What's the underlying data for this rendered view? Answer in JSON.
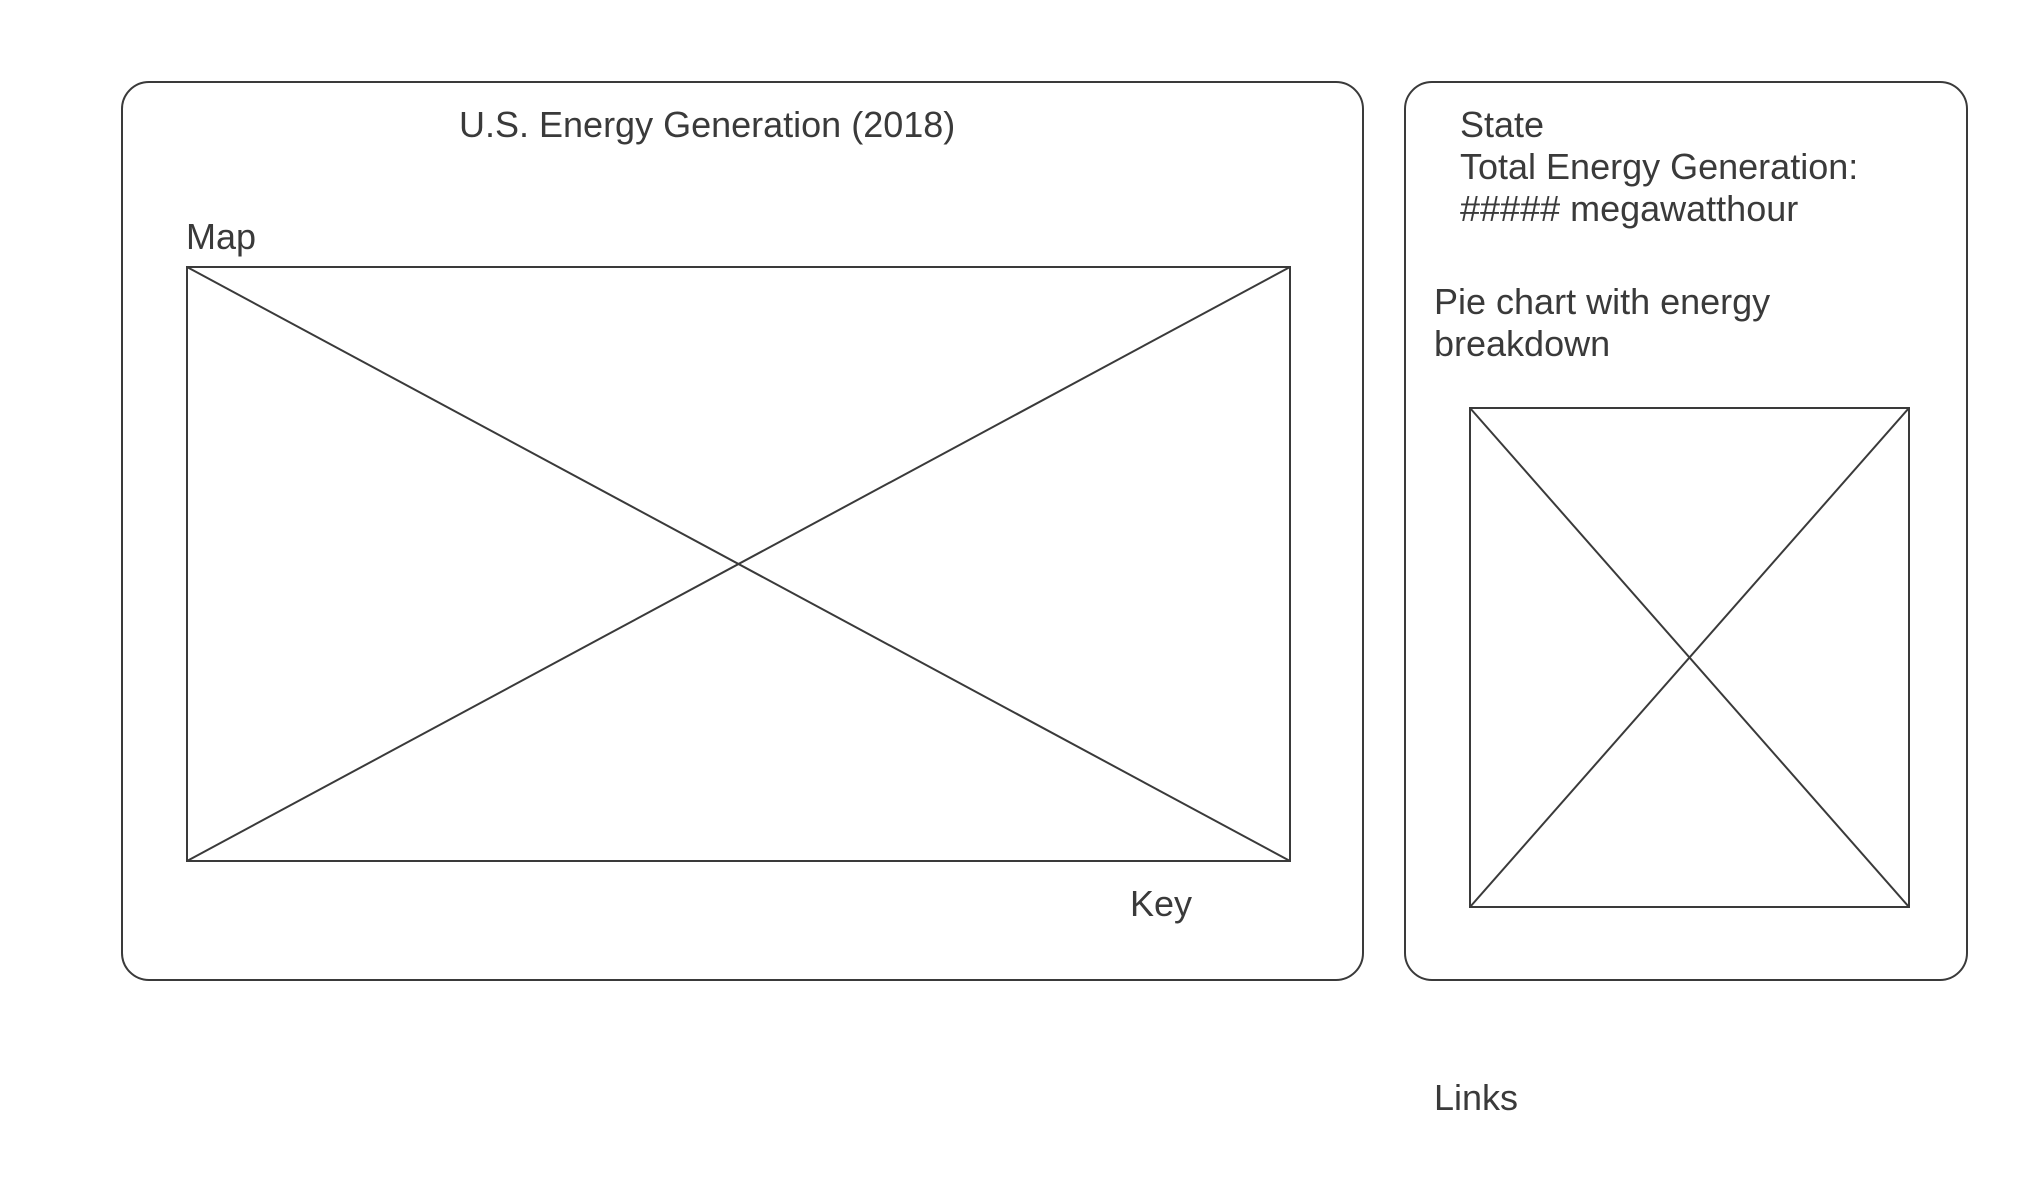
{
  "main": {
    "title": "U.S. Energy Generation (2018)",
    "map_label": "Map",
    "key_label": "Key"
  },
  "side": {
    "state_label": "State",
    "total_label": "Total Energy Generation:",
    "total_value": "##### megawatthour",
    "pie_label_line1": "Pie chart with energy",
    "pie_label_line2": "breakdown"
  },
  "footer": {
    "links_label": "Links"
  }
}
